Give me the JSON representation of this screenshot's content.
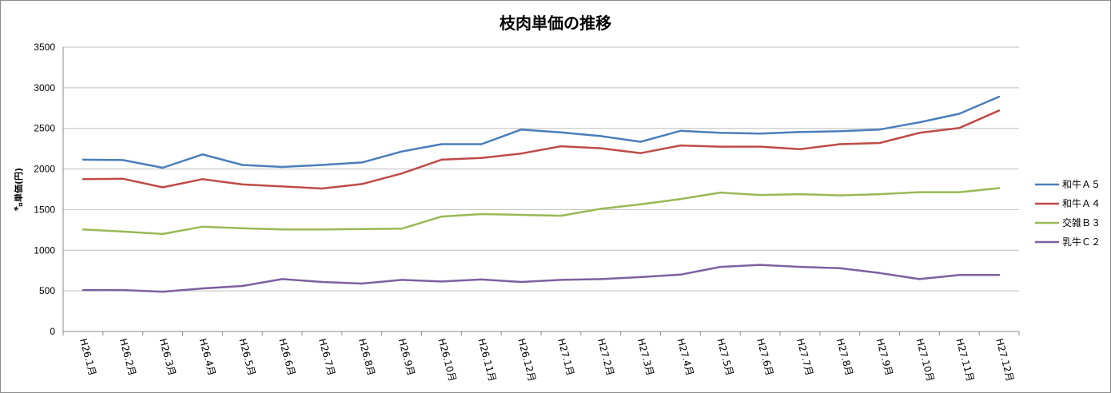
{
  "chart_data": {
    "type": "line",
    "title": "枝肉単価の推移",
    "ylabel": "㌔単価(円)",
    "xlabel": "",
    "ylim": [
      0,
      3500
    ],
    "yticks": [
      0,
      500,
      1000,
      1500,
      2000,
      2500,
      3000,
      3500
    ],
    "grid": "horizontal",
    "legend_position": "right",
    "categories": [
      "H26.1月",
      "H26.2月",
      "H26.3月",
      "H26.4月",
      "H26.5月",
      "H26.6月",
      "H26.7月",
      "H26.8月",
      "H26.9月",
      "H26.10月",
      "H26.11月",
      "H26.12月",
      "H27.1月",
      "H27.2月",
      "H27.3月",
      "H27.4月",
      "H27.5月",
      "H27.6月",
      "H27.7月",
      "H27.8月",
      "H27.9月",
      "H27.10月",
      "H27.11月",
      "H27.12月"
    ],
    "series": [
      {
        "name": "和牛Ａ５",
        "color": "#4a7ebb",
        "values": [
          2115,
          2110,
          2015,
          2180,
          2050,
          2025,
          2050,
          2080,
          2215,
          2305,
          2305,
          2485,
          2450,
          2405,
          2335,
          2470,
          2445,
          2435,
          2455,
          2465,
          2485,
          2575,
          2680,
          2890
        ]
      },
      {
        "name": "和牛Ａ４",
        "color": "#be4b48",
        "values": [
          1875,
          1880,
          1775,
          1875,
          1810,
          1785,
          1760,
          1815,
          1945,
          2115,
          2135,
          2190,
          2280,
          2255,
          2195,
          2290,
          2275,
          2275,
          2245,
          2305,
          2320,
          2445,
          2505,
          2720
        ]
      },
      {
        "name": "交雑Ｂ３",
        "color": "#98b954",
        "values": [
          1255,
          1230,
          1200,
          1290,
          1270,
          1255,
          1255,
          1260,
          1265,
          1415,
          1445,
          1435,
          1425,
          1510,
          1565,
          1630,
          1710,
          1680,
          1690,
          1675,
          1690,
          1715,
          1715,
          1765
        ]
      },
      {
        "name": "乳牛Ｃ２",
        "color": "#7d60a0",
        "values": [
          510,
          510,
          490,
          530,
          560,
          645,
          610,
          590,
          635,
          615,
          640,
          610,
          635,
          645,
          670,
          700,
          795,
          820,
          795,
          780,
          720,
          645,
          695,
          695
        ]
      }
    ]
  }
}
